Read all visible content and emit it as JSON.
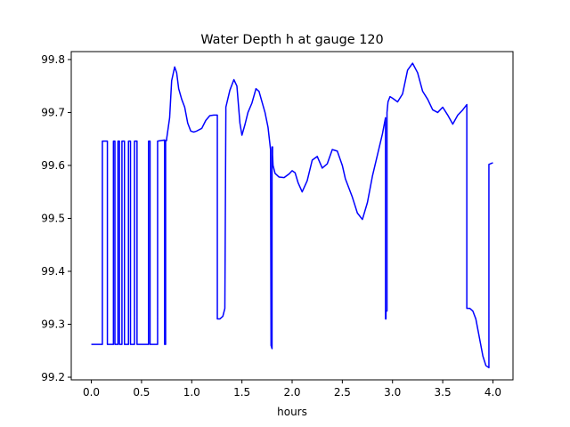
{
  "chart_data": {
    "type": "line",
    "title": "Water Depth h at gauge 120",
    "xlabel": "hours",
    "ylabel": "",
    "xlim": [
      -0.2,
      4.2
    ],
    "ylim": [
      99.195,
      99.815
    ],
    "xticks": [
      0.0,
      0.5,
      1.0,
      1.5,
      2.0,
      2.5,
      3.0,
      3.5,
      4.0
    ],
    "xtick_labels": [
      "0.0",
      "0.5",
      "1.0",
      "1.5",
      "2.0",
      "2.5",
      "3.0",
      "3.5",
      "4.0"
    ],
    "yticks": [
      99.2,
      99.3,
      99.4,
      99.5,
      99.6,
      99.7,
      99.8
    ],
    "ytick_labels": [
      "99.2",
      "99.3",
      "99.4",
      "99.5",
      "99.6",
      "99.7",
      "99.8"
    ],
    "grid": false,
    "legend": "none",
    "series": [
      {
        "color": "#0000ff",
        "x": [
          0.0,
          0.11,
          0.11,
          0.16,
          0.16,
          0.22,
          0.22,
          0.235,
          0.235,
          0.265,
          0.265,
          0.28,
          0.28,
          0.305,
          0.305,
          0.33,
          0.33,
          0.37,
          0.37,
          0.39,
          0.39,
          0.43,
          0.43,
          0.455,
          0.455,
          0.57,
          0.57,
          0.585,
          0.585,
          0.66,
          0.66,
          0.73,
          0.73,
          0.74,
          0.74,
          0.75,
          0.75,
          0.78,
          0.8,
          0.83,
          0.85,
          0.87,
          0.9,
          0.93,
          0.96,
          0.99,
          1.02,
          1.05,
          1.1,
          1.14,
          1.18,
          1.22,
          1.25,
          1.255,
          1.255,
          1.28,
          1.31,
          1.33,
          1.34,
          1.34,
          1.38,
          1.42,
          1.45,
          1.48,
          1.5,
          1.53,
          1.56,
          1.6,
          1.64,
          1.67,
          1.7,
          1.73,
          1.76,
          1.785,
          1.79,
          1.8,
          1.8,
          1.805,
          1.805,
          1.81,
          1.83,
          1.87,
          1.92,
          1.97,
          2.0,
          2.03,
          2.06,
          2.1,
          2.15,
          2.2,
          2.25,
          2.3,
          2.35,
          2.4,
          2.45,
          2.5,
          2.53,
          2.56,
          2.6,
          2.65,
          2.7,
          2.75,
          2.8,
          2.85,
          2.9,
          2.93,
          2.93,
          2.935,
          2.935,
          2.945,
          2.945,
          2.955,
          2.955,
          2.975,
          3.0,
          3.05,
          3.1,
          3.15,
          3.2,
          3.25,
          3.3,
          3.35,
          3.4,
          3.45,
          3.5,
          3.55,
          3.6,
          3.65,
          3.7,
          3.74,
          3.74,
          3.77,
          3.8,
          3.83,
          3.86,
          3.9,
          3.93,
          3.96,
          3.96,
          4.0
        ],
        "y": [
          99.262,
          99.262,
          99.646,
          99.646,
          99.262,
          99.262,
          99.646,
          99.646,
          99.262,
          99.262,
          99.646,
          99.646,
          99.262,
          99.262,
          99.646,
          99.646,
          99.262,
          99.262,
          99.646,
          99.646,
          99.262,
          99.262,
          99.646,
          99.646,
          99.262,
          99.262,
          99.646,
          99.646,
          99.262,
          99.262,
          99.646,
          99.648,
          99.262,
          99.262,
          99.647,
          99.647,
          99.65,
          99.69,
          99.76,
          99.786,
          99.775,
          99.745,
          99.725,
          99.71,
          99.68,
          99.665,
          99.663,
          99.665,
          99.67,
          99.685,
          99.694,
          99.695,
          99.695,
          99.695,
          99.31,
          99.31,
          99.315,
          99.33,
          99.7,
          99.71,
          99.742,
          99.762,
          99.75,
          99.68,
          99.657,
          99.677,
          99.7,
          99.718,
          99.745,
          99.74,
          99.72,
          99.7,
          99.672,
          99.63,
          99.26,
          99.254,
          99.635,
          99.635,
          99.62,
          99.6,
          99.585,
          99.578,
          99.577,
          99.584,
          99.59,
          99.586,
          99.567,
          99.55,
          99.571,
          99.61,
          99.617,
          99.595,
          99.603,
          99.63,
          99.627,
          99.6,
          99.575,
          99.56,
          99.54,
          99.51,
          99.498,
          99.53,
          99.58,
          99.62,
          99.66,
          99.69,
          99.31,
          99.31,
          99.325,
          99.325,
          99.7,
          99.72,
          99.72,
          99.73,
          99.727,
          99.72,
          99.735,
          99.78,
          99.793,
          99.775,
          99.74,
          99.725,
          99.705,
          99.7,
          99.71,
          99.695,
          99.678,
          99.695,
          99.705,
          99.715,
          99.33,
          99.33,
          99.325,
          99.31,
          99.28,
          99.24,
          99.222,
          99.218,
          99.602,
          99.605
        ]
      }
    ]
  }
}
